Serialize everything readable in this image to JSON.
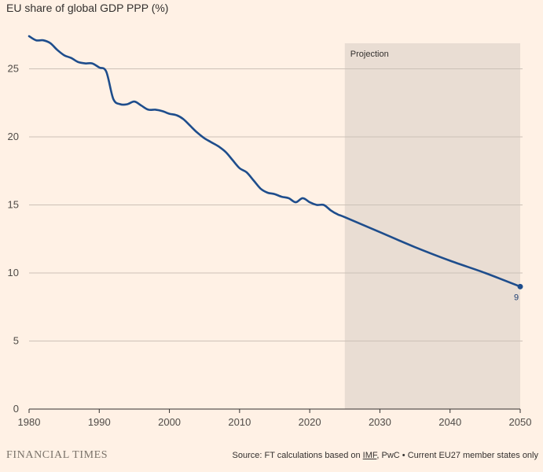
{
  "chart_data": {
    "type": "line",
    "title": "EU share of global GDP PPP (%)",
    "xlabel": "",
    "ylabel": "",
    "xlim": [
      1980,
      2050
    ],
    "ylim": [
      0,
      28.5
    ],
    "x_ticks": [
      1980,
      1990,
      2000,
      2010,
      2020,
      2030,
      2040,
      2050
    ],
    "y_ticks": [
      0,
      5,
      10,
      15,
      20,
      25
    ],
    "grid": "horizontal",
    "projection": {
      "label": "Projection",
      "start": 2025,
      "end": 2050
    },
    "series": [
      {
        "name": "EU share of global GDP PPP",
        "color": "#1e4d8c",
        "x": [
          1980,
          1981,
          1982,
          1983,
          1984,
          1985,
          1986,
          1987,
          1988,
          1989,
          1990,
          1991,
          1992,
          1993,
          1994,
          1995,
          1996,
          1997,
          1998,
          1999,
          2000,
          2001,
          2002,
          2003,
          2004,
          2005,
          2006,
          2007,
          2008,
          2009,
          2010,
          2011,
          2012,
          2013,
          2014,
          2015,
          2016,
          2017,
          2018,
          2019,
          2020,
          2021,
          2022,
          2023,
          2024,
          2025,
          2030,
          2035,
          2040,
          2045,
          2050
        ],
        "values": [
          27.4,
          27.1,
          27.1,
          26.9,
          26.4,
          26.0,
          25.8,
          25.5,
          25.4,
          25.4,
          25.1,
          24.8,
          22.8,
          22.4,
          22.4,
          22.6,
          22.3,
          22.0,
          22.0,
          21.9,
          21.7,
          21.6,
          21.3,
          20.8,
          20.3,
          19.9,
          19.6,
          19.3,
          18.9,
          18.3,
          17.7,
          17.4,
          16.8,
          16.2,
          15.9,
          15.8,
          15.6,
          15.5,
          15.2,
          15.5,
          15.2,
          15.0,
          15.0,
          14.6,
          14.3,
          14.1,
          13.0,
          11.9,
          10.9,
          10.0,
          9.0
        ]
      }
    ],
    "end_label": "9"
  },
  "footer": {
    "brand": "FINANCIAL TIMES",
    "source_prefix": "Source: FT calculations based on ",
    "source_imf": "IMF",
    "source_suffix": ", PwC • Current EU27 member states only"
  }
}
